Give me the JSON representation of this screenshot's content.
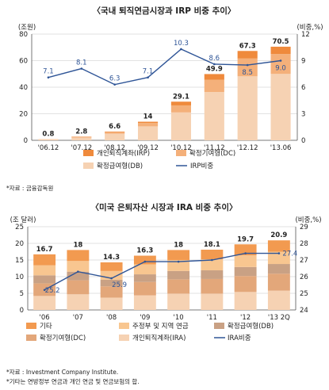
{
  "chart_data": [
    {
      "type": "bar",
      "title": "〈국내 퇴직연금시장과 IRP 비중 추이〉",
      "left_unit": "(조원)",
      "right_unit": "(비중,%)",
      "categories": [
        "'06.12",
        "'07.12",
        "'08.12",
        "'09.12",
        "'10.12",
        "'11.12",
        "'12.12",
        "'13.06"
      ],
      "ylim": [
        0,
        80
      ],
      "yticks": [
        0,
        20,
        40,
        60,
        80
      ],
      "y2lim": [
        0,
        12
      ],
      "y2ticks": [
        0,
        3,
        6,
        9,
        12
      ],
      "stacked_series": [
        {
          "name": "확정급여형(DB)",
          "color": "#f6d2b3",
          "values": [
            0.6,
            2.0,
            5.0,
            10.5,
            21.0,
            36.4,
            48.2,
            50.0
          ]
        },
        {
          "name": "확정기여형(DC)",
          "color": "#f4b07a",
          "values": [
            0.15,
            0.6,
            1.2,
            2.6,
            5.3,
            9.2,
            13.4,
            15.0
          ]
        },
        {
          "name": "개인퇴직계좌(IRP)",
          "color": "#ef8a3c",
          "values": [
            0.05,
            0.2,
            0.4,
            0.9,
            2.8,
            4.3,
            5.7,
            5.5
          ]
        }
      ],
      "totals": [
        0.8,
        2.8,
        6.6,
        14.0,
        29.1,
        49.9,
        67.3,
        70.5
      ],
      "line_series": {
        "name": "IRP비중",
        "color": "#2f5597",
        "values": [
          7.1,
          8.1,
          6.3,
          7.1,
          10.3,
          8.6,
          8.5,
          9.0
        ]
      },
      "source": "*자료 : 금융감독원"
    },
    {
      "type": "bar",
      "title": "〈미국 은퇴자산 시장과 IRA 비중 추이〉",
      "left_unit": "(조 달러)",
      "right_unit": "(비중,%)",
      "categories": [
        "'06",
        "'07",
        "'08",
        "'09",
        "'10",
        "'11",
        "'12",
        "'13 2Q"
      ],
      "ylim": [
        0,
        25
      ],
      "yticks": [
        0,
        5,
        10,
        15,
        20,
        25
      ],
      "y2lim": [
        24,
        29
      ],
      "y2ticks": [
        24,
        25,
        26,
        27,
        28,
        29
      ],
      "stacked_series": [
        {
          "name": "개인퇴직계좌(IRA)",
          "color": "#f6d2b3",
          "values": [
            4.2,
            4.7,
            3.7,
            4.4,
            4.9,
            4.9,
            5.4,
            5.8
          ]
        },
        {
          "name": "확정기여형(DC)",
          "color": "#e3a77a",
          "values": [
            3.8,
            4.2,
            3.4,
            4.0,
            4.3,
            4.4,
            4.8,
            5.1
          ]
        },
        {
          "name": "확정급여형(DB)",
          "color": "#c9a184",
          "values": [
            2.4,
            2.6,
            2.0,
            2.3,
            2.5,
            2.6,
            2.7,
            2.9
          ]
        },
        {
          "name": "주정부 및 지역 연금",
          "color": "#f8c690",
          "values": [
            3.0,
            3.2,
            2.6,
            3.0,
            3.3,
            3.3,
            3.5,
            3.7
          ]
        },
        {
          "name": "기타",
          "color": "#f29a50",
          "values": [
            3.3,
            3.3,
            2.6,
            2.6,
            3.0,
            2.9,
            3.3,
            3.4
          ]
        }
      ],
      "totals": [
        16.7,
        18.0,
        14.3,
        16.3,
        18.0,
        18.1,
        19.7,
        20.9
      ],
      "line_series": {
        "name": "IRA비중",
        "color": "#2f5597",
        "values": [
          25.2,
          26.3,
          25.9,
          26.9,
          26.9,
          27.0,
          27.4,
          27.4
        ]
      },
      "line_labels": [
        {
          "index": 0,
          "text": "25.2"
        },
        {
          "index": 2,
          "text": "25.9"
        },
        {
          "index": 7,
          "text": "27.4"
        }
      ],
      "legend_order": [
        "기타",
        "주정부 및 지역 연금",
        "확정급여형(DB)",
        "확정기여형(DC)",
        "개인퇴직계좌(IRA)",
        "IRA비중"
      ],
      "notes": [
        "*자료 : Investment Company Institute.",
        "*기타는 연방정부 연금과 개인 연금 및 연금보험의 합."
      ]
    }
  ]
}
